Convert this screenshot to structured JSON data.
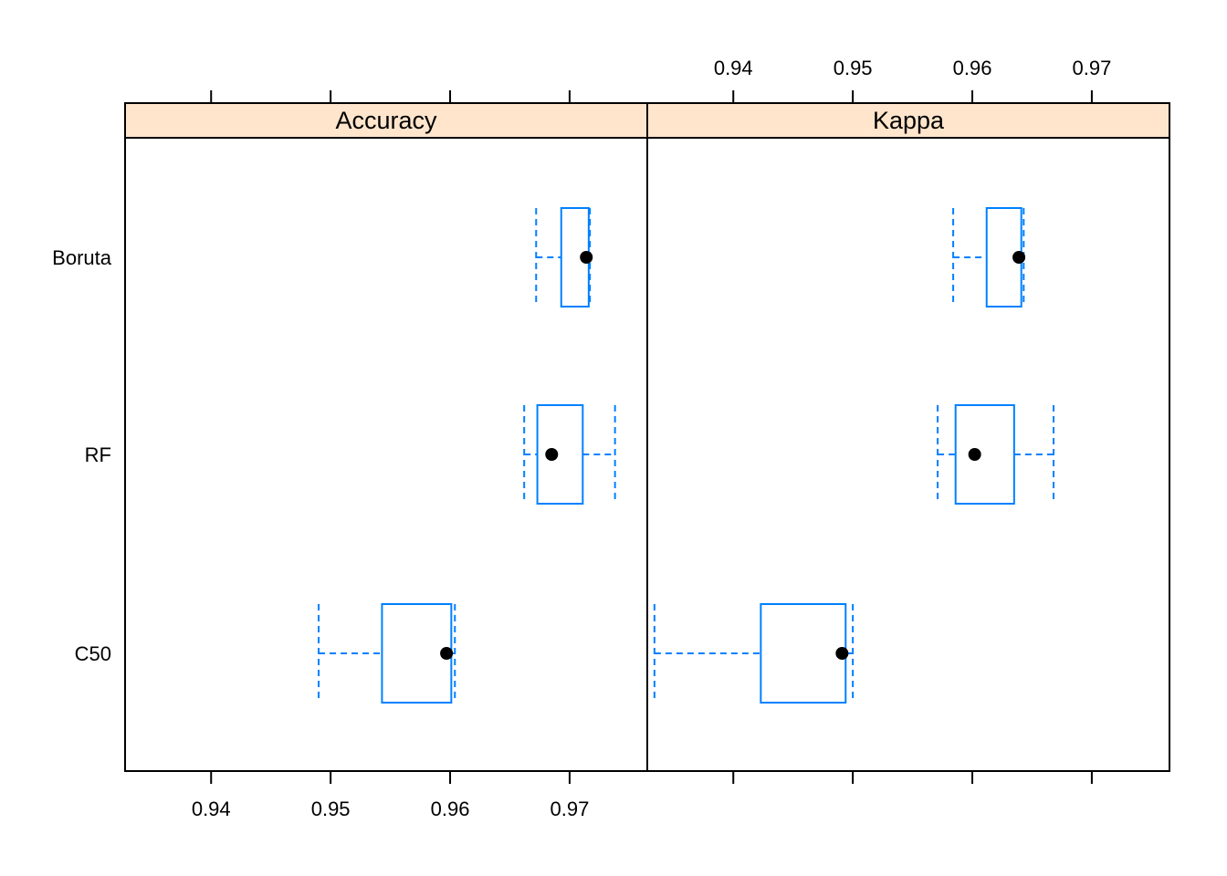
{
  "chart_data": {
    "type": "boxplot",
    "categories": [
      "Boruta",
      "RF",
      "C50"
    ],
    "x_ticks": [
      "0.94",
      "0.95",
      "0.96",
      "0.97"
    ],
    "xlim": [
      0.9328,
      0.9765
    ],
    "panels": [
      {
        "title": "Accuracy",
        "series": [
          {
            "category": "Boruta",
            "min": 0.9672,
            "q1": 0.9693,
            "median": 0.9714,
            "q3": 0.9716,
            "max": 0.9717
          },
          {
            "category": "RF",
            "min": 0.9662,
            "q1": 0.9673,
            "median": 0.9685,
            "q3": 0.9711,
            "max": 0.9738
          },
          {
            "category": "C50",
            "min": 0.949,
            "q1": 0.9543,
            "median": 0.9597,
            "q3": 0.9601,
            "max": 0.9604
          }
        ]
      },
      {
        "title": "Kappa",
        "series": [
          {
            "category": "Boruta",
            "min": 0.9584,
            "q1": 0.9612,
            "median": 0.9639,
            "q3": 0.9641,
            "max": 0.9643
          },
          {
            "category": "RF",
            "min": 0.9571,
            "q1": 0.9586,
            "median": 0.9602,
            "q3": 0.9635,
            "max": 0.9668
          },
          {
            "category": "C50",
            "min": 0.9334,
            "q1": 0.9423,
            "median": 0.9491,
            "q3": 0.9494,
            "max": 0.95
          }
        ]
      }
    ],
    "colors": {
      "box": "#0080ff",
      "median_dot": "#000000",
      "strip_bg": "#ffe5cc",
      "frame": "#000000"
    }
  }
}
